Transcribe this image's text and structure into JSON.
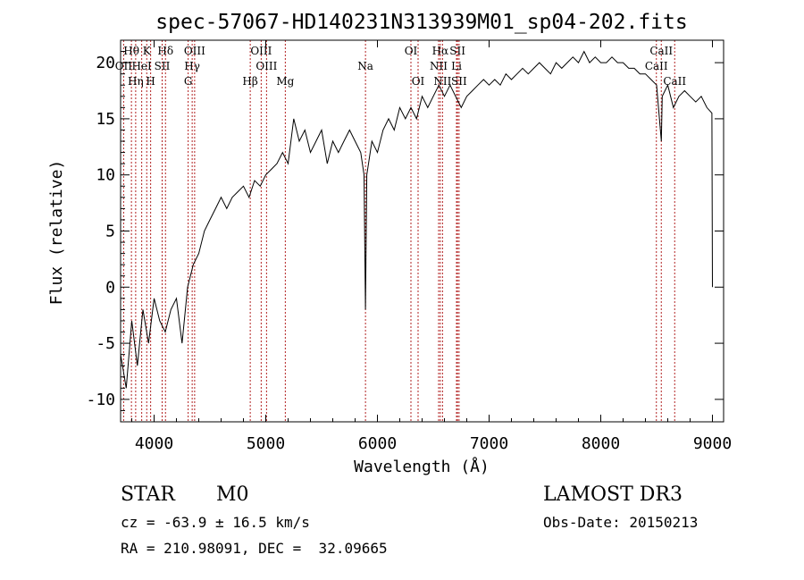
{
  "chart_data": {
    "type": "line",
    "title": "spec-57067-HD140231N313939M01_sp04-202.fits",
    "xlabel": "Wavelength (Å)",
    "ylabel": "Flux (relative)",
    "xlim": [
      3700,
      9100
    ],
    "ylim": [
      -12,
      22
    ],
    "xticks": [
      4000,
      5000,
      6000,
      7000,
      8000,
      9000
    ],
    "yticks": [
      -10,
      -5,
      0,
      5,
      10,
      15,
      20
    ],
    "series": [
      {
        "name": "spectrum",
        "x": [
          3700,
          3750,
          3800,
          3850,
          3900,
          3950,
          4000,
          4050,
          4100,
          4150,
          4200,
          4250,
          4300,
          4350,
          4400,
          4450,
          4500,
          4550,
          4600,
          4650,
          4700,
          4750,
          4800,
          4850,
          4900,
          4950,
          5000,
          5050,
          5100,
          5150,
          5200,
          5250,
          5300,
          5350,
          5400,
          5450,
          5500,
          5550,
          5600,
          5650,
          5700,
          5750,
          5800,
          5850,
          5880,
          5893,
          5905,
          5950,
          6000,
          6050,
          6100,
          6150,
          6200,
          6250,
          6300,
          6350,
          6400,
          6450,
          6500,
          6550,
          6600,
          6650,
          6700,
          6750,
          6800,
          6850,
          6900,
          6950,
          7000,
          7050,
          7100,
          7150,
          7200,
          7250,
          7300,
          7350,
          7400,
          7450,
          7500,
          7550,
          7600,
          7650,
          7700,
          7750,
          7800,
          7850,
          7900,
          7950,
          8000,
          8050,
          8100,
          8150,
          8200,
          8250,
          8300,
          8350,
          8400,
          8450,
          8500,
          8542,
          8550,
          8600,
          8650,
          8700,
          8750,
          8800,
          8850,
          8900,
          8950,
          8995,
          9000
        ],
        "y": [
          -6,
          -9,
          -3,
          -7,
          -2,
          -5,
          -1,
          -3,
          -4,
          -2,
          -1,
          -5,
          0,
          2,
          3,
          5,
          6,
          7,
          8,
          7,
          8,
          8.5,
          9,
          8,
          9.5,
          9,
          10,
          10.5,
          11,
          12,
          11,
          15,
          13,
          14,
          12,
          13,
          14,
          11,
          13,
          12,
          13,
          14,
          13,
          12,
          10,
          -2,
          10,
          13,
          12,
          14,
          15,
          14,
          16,
          15,
          16,
          15,
          17,
          16,
          17,
          18,
          17,
          18,
          17,
          16,
          17,
          17.5,
          18,
          18.5,
          18,
          18.5,
          18,
          19,
          18.5,
          19,
          19.5,
          19,
          19.5,
          20,
          19.5,
          19,
          20,
          19.5,
          20,
          20.5,
          20,
          21,
          20,
          20.5,
          20,
          20,
          20.5,
          20,
          20,
          19.5,
          19.5,
          19,
          19,
          18.5,
          18,
          13,
          17,
          18,
          16,
          17,
          17.5,
          17,
          16.5,
          17,
          16,
          15.5,
          0
        ]
      }
    ],
    "features": [
      {
        "name": "Hθ",
        "wavelength": 3797,
        "row": 1
      },
      {
        "name": "K",
        "wavelength": 3934,
        "row": 1
      },
      {
        "name": "Hδ",
        "wavelength": 4102,
        "row": 1
      },
      {
        "name": "OIII",
        "wavelength": 4363,
        "row": 1
      },
      {
        "name": "OIII",
        "wavelength": 4959,
        "row": 1
      },
      {
        "name": "OI",
        "wavelength": 6300,
        "row": 1
      },
      {
        "name": "Hα",
        "wavelength": 6563,
        "row": 1
      },
      {
        "name": "SII",
        "wavelength": 6717,
        "row": 1
      },
      {
        "name": "CaII",
        "wavelength": 8542,
        "row": 1
      },
      {
        "name": "OII",
        "wavelength": 3727,
        "row": 2
      },
      {
        "name": "HeI",
        "wavelength": 3889,
        "row": 2
      },
      {
        "name": "SII",
        "wavelength": 4072,
        "row": 2
      },
      {
        "name": "Hγ",
        "wavelength": 4341,
        "row": 2
      },
      {
        "name": "OIII",
        "wavelength": 5007,
        "row": 2
      },
      {
        "name": "Na",
        "wavelength": 5893,
        "row": 2
      },
      {
        "name": "NII",
        "wavelength": 6548,
        "row": 2
      },
      {
        "name": "Li",
        "wavelength": 6708,
        "row": 2
      },
      {
        "name": "CaII",
        "wavelength": 8498,
        "row": 2
      },
      {
        "name": "Hη",
        "wavelength": 3835,
        "row": 3
      },
      {
        "name": "H",
        "wavelength": 3969,
        "row": 3
      },
      {
        "name": "G",
        "wavelength": 4305,
        "row": 3
      },
      {
        "name": "Hβ",
        "wavelength": 4861,
        "row": 3
      },
      {
        "name": "Mg",
        "wavelength": 5175,
        "row": 3
      },
      {
        "name": "OI",
        "wavelength": 6364,
        "row": 3
      },
      {
        "name": "NII",
        "wavelength": 6583,
        "row": 3
      },
      {
        "name": "SII",
        "wavelength": 6731,
        "row": 3
      },
      {
        "name": "CaII",
        "wavelength": 8662,
        "row": 3
      }
    ]
  },
  "info": {
    "object_class": "STAR",
    "subclass": "M0",
    "survey": "LAMOST DR3",
    "redshift_text": "cz = -63.9 ± 16.5 km/s",
    "obs_date_text": "Obs-Date: 20150213",
    "coords_text": "RA = 210.98091, DEC =  32.09665"
  }
}
